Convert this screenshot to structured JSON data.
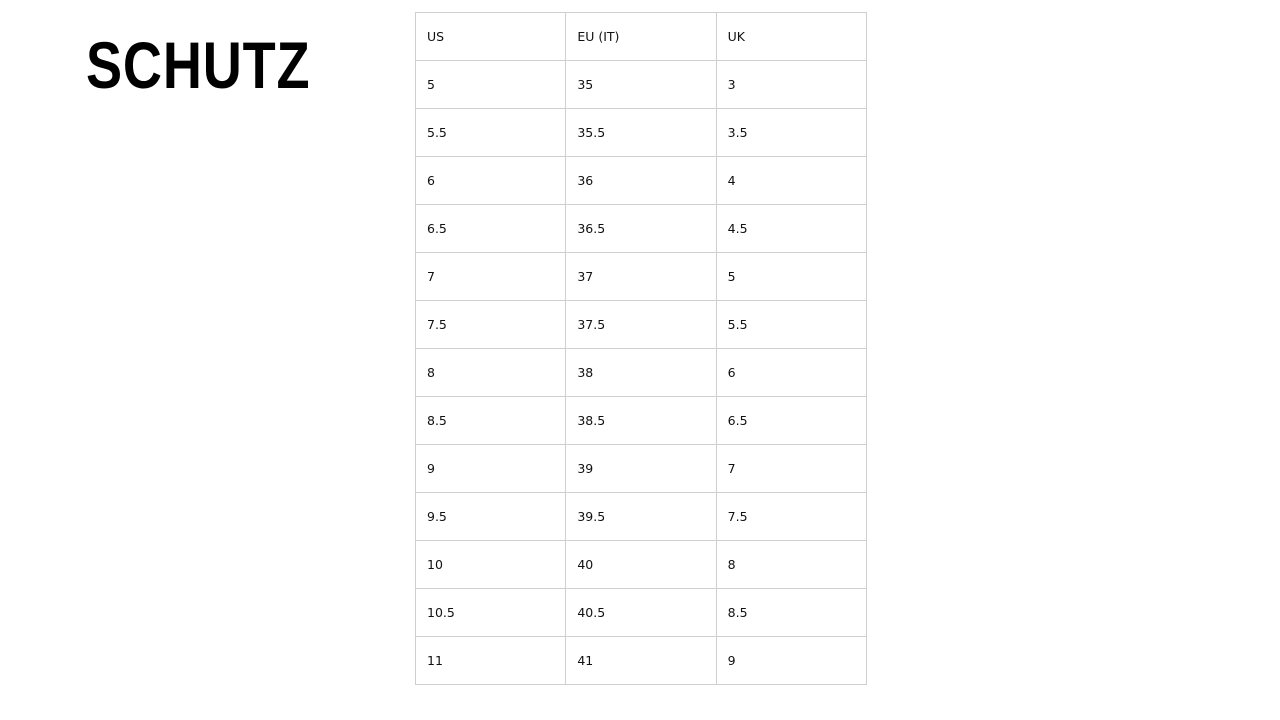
{
  "brand": {
    "logo_text": "SCHUTZ"
  },
  "size_chart": {
    "headers": [
      "US",
      "EU (IT)",
      "UK"
    ],
    "rows": [
      [
        "5",
        "35",
        "3"
      ],
      [
        "5.5",
        "35.5",
        "3.5"
      ],
      [
        "6",
        "36",
        "4"
      ],
      [
        "6.5",
        "36.5",
        "4.5"
      ],
      [
        "7",
        "37",
        "5"
      ],
      [
        "7.5",
        "37.5",
        "5.5"
      ],
      [
        "8",
        "38",
        "6"
      ],
      [
        "8.5",
        "38.5",
        "6.5"
      ],
      [
        "9",
        "39",
        "7"
      ],
      [
        "9.5",
        "39.5",
        "7.5"
      ],
      [
        "10",
        "40",
        "8"
      ],
      [
        "10.5",
        "40.5",
        "8.5"
      ],
      [
        "11",
        "41",
        "9"
      ]
    ]
  }
}
